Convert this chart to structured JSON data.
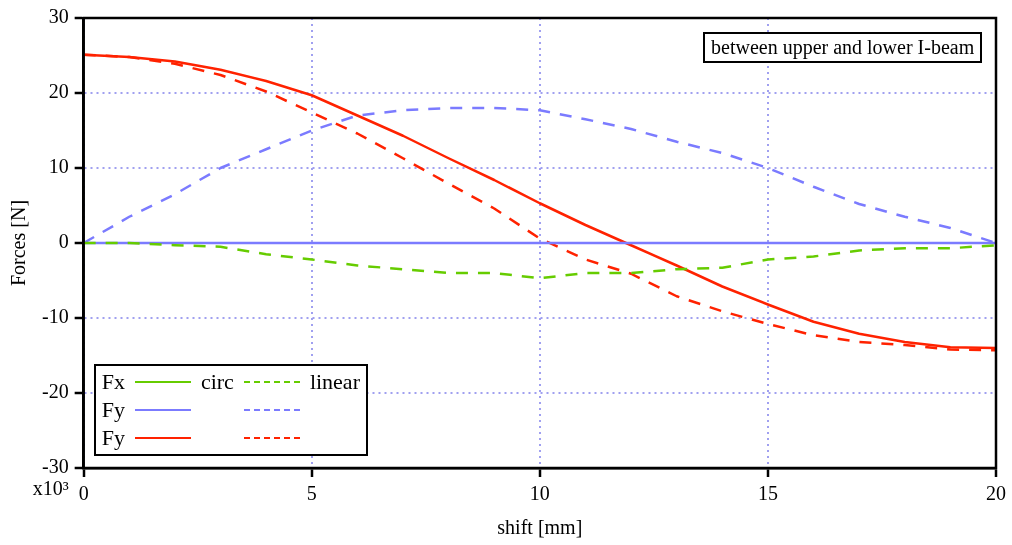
{
  "chart_data": {
    "type": "line",
    "xlabel": "shift [mm]",
    "ylabel": "Forces [N]",
    "x": [
      0,
      1,
      2,
      3,
      4,
      5,
      6,
      7,
      8,
      9,
      10,
      11,
      12,
      13,
      14,
      15,
      16,
      17,
      18,
      19,
      20
    ],
    "xlim": [
      0,
      20
    ],
    "xticks": [
      0,
      5,
      10,
      15,
      20
    ],
    "ylim": [
      -30,
      30
    ],
    "yticks": [
      30,
      20,
      10,
      0,
      -10,
      -20,
      -30
    ],
    "grid": true,
    "legend": "bottom left",
    "annotations": [
      "between upper and lower I-beam",
      "circ",
      "linear",
      "x10³"
    ],
    "series": [
      {
        "name": "Fx",
        "color": "#66cc00",
        "line_style": "solid",
        "values": [
          null,
          null,
          null,
          null,
          null,
          null,
          null,
          null,
          null,
          null,
          null,
          null,
          null,
          null,
          null,
          null,
          null,
          null,
          null,
          null,
          null
        ]
      },
      {
        "color": "#66cc00",
        "line_style": "dashed",
        "values": [
          0,
          0,
          -0.3,
          -0.5,
          -1.5,
          -2.2,
          -3,
          -3.5,
          -4,
          -4,
          -4.7,
          -4,
          -4,
          -3.5,
          -3.3,
          -2.2,
          -1.8,
          -1,
          -0.7,
          -0.7,
          -0.3
        ]
      },
      {
        "name": "Fy",
        "color": "#7b7bff",
        "line_style": "solid",
        "values": [
          0,
          0,
          0,
          0,
          0,
          0,
          0,
          0,
          0,
          0,
          0,
          0,
          0,
          0,
          0,
          0,
          0,
          0,
          0,
          0,
          0
        ]
      },
      {
        "color": "#7b7bff",
        "line_style": "dashed",
        "values": [
          0,
          3.5,
          6.5,
          10,
          12.5,
          15,
          17,
          17.7,
          18,
          18,
          17.7,
          16.5,
          15.2,
          13.5,
          12,
          10,
          7.5,
          5.2,
          3.5,
          2,
          0
        ]
      },
      {
        "name": "Fy",
        "color": "#ff2200",
        "line_style": "solid",
        "values": [
          25.1,
          24.8,
          24.2,
          23.1,
          21.6,
          19.7,
          17,
          14.3,
          11.3,
          8.4,
          5.3,
          2.4,
          -0.3,
          -3,
          -5.8,
          -8.2,
          -10.5,
          -12.1,
          -13.2,
          -13.9,
          -14
        ]
      },
      {
        "color": "#ff2200",
        "line_style": "dashed",
        "values": [
          25.1,
          24.8,
          23.9,
          22.4,
          20.2,
          17.4,
          14.6,
          11.3,
          7.9,
          4.6,
          0.6,
          -2.2,
          -4.1,
          -7.1,
          -9.1,
          -10.8,
          -12.3,
          -13.2,
          -13.6,
          -14.2,
          -14.3
        ]
      }
    ]
  }
}
